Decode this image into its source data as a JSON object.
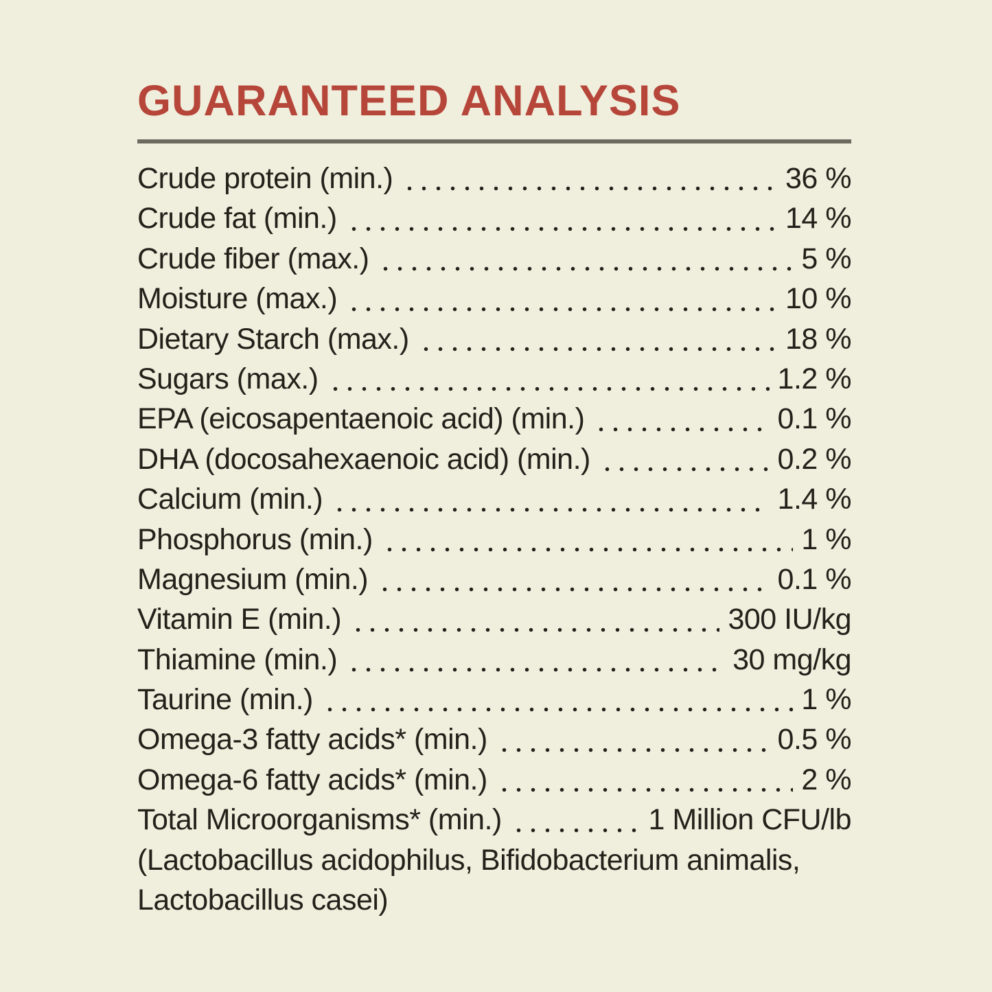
{
  "colors": {
    "background": "#f0eedc",
    "heading": "#b6453a",
    "text": "#23211a",
    "divider": "#6c6a5e"
  },
  "header": {
    "title": "GUARANTEED ANALYSIS"
  },
  "analysis": {
    "rows": [
      {
        "label": "Crude protein (min.)",
        "value": "36 %"
      },
      {
        "label": "Crude fat (min.)",
        "value": "14 %"
      },
      {
        "label": "Crude fiber (max.)",
        "value": "5 %"
      },
      {
        "label": "Moisture (max.)",
        "value": "10 %"
      },
      {
        "label": "Dietary Starch (max.)",
        "value": "18 %"
      },
      {
        "label": "Sugars (max.)",
        "value": "1.2 %"
      },
      {
        "label": "EPA (eicosapentaenoic acid) (min.)",
        "value": "0.1 %"
      },
      {
        "label": "DHA (docosahexaenoic acid) (min.)",
        "value": "0.2 %"
      },
      {
        "label": "Calcium (min.)",
        "value": "1.4 %"
      },
      {
        "label": "Phosphorus (min.)",
        "value": "1 %"
      },
      {
        "label": "Magnesium (min.)",
        "value": "0.1 %"
      },
      {
        "label": "Vitamin E (min.)",
        "value": "300 IU/kg"
      },
      {
        "label": "Thiamine (min.)",
        "value": "30 mg/kg"
      },
      {
        "label": "Taurine (min.)",
        "value": "1 %"
      },
      {
        "label": "Omega-3 fatty acids* (min.)",
        "value": "0.5 %"
      },
      {
        "label": "Omega-6 fatty acids* (min.)",
        "value": "2 %"
      },
      {
        "label": "Total Microorganisms* (min.)",
        "value": "1 Million CFU/lb"
      }
    ],
    "footnote_lines": [
      "(Lactobacillus acidophilus, Bifidobacterium animalis,",
      "Lactobacillus casei)"
    ]
  }
}
